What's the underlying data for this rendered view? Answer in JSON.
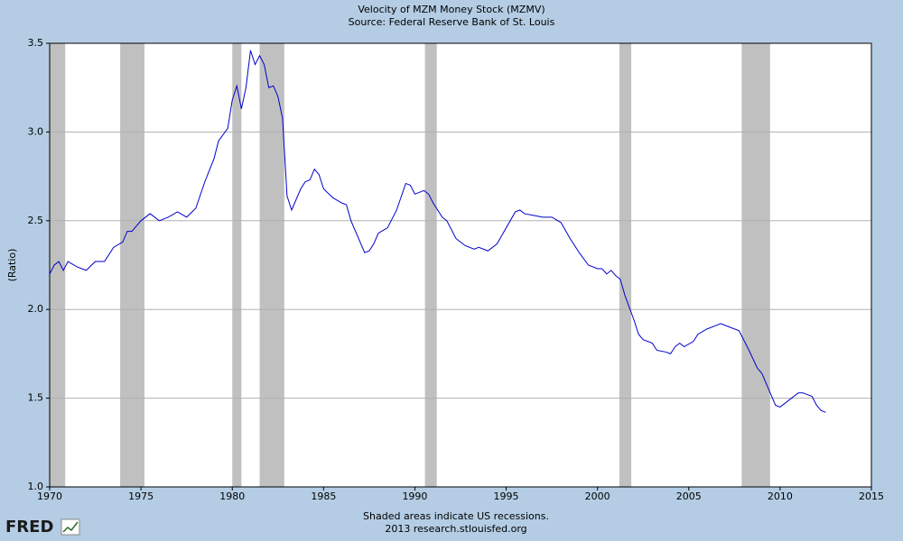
{
  "chart_data": {
    "type": "line",
    "title": "Velocity of MZM Money Stock (MZMV)",
    "subtitle": "Source: Federal Reserve Bank of St. Louis",
    "ylabel": "(Ratio)",
    "notes": [
      "Shaded areas indicate US recessions.",
      "2013 research.stlouisfed.org"
    ],
    "logo": "FRED",
    "x": [
      1970.0,
      1970.25,
      1970.5,
      1970.75,
      1971.0,
      1971.5,
      1972.0,
      1972.5,
      1973.0,
      1973.5,
      1974.0,
      1974.25,
      1974.5,
      1975.0,
      1975.5,
      1976.0,
      1976.5,
      1977.0,
      1977.5,
      1978.0,
      1978.5,
      1979.0,
      1979.25,
      1979.75,
      1980.0,
      1980.25,
      1980.5,
      1980.75,
      1981.0,
      1981.25,
      1981.5,
      1981.75,
      1982.0,
      1982.25,
      1982.5,
      1982.75,
      1983.0,
      1983.25,
      1983.75,
      1984.0,
      1984.25,
      1984.5,
      1984.75,
      1985.0,
      1985.5,
      1986.0,
      1986.25,
      1986.5,
      1987.0,
      1987.25,
      1987.5,
      1987.75,
      1988.0,
      1988.5,
      1989.0,
      1989.5,
      1989.75,
      1990.0,
      1990.5,
      1990.75,
      1991.0,
      1991.5,
      1991.75,
      1992.25,
      1992.75,
      1993.25,
      1993.5,
      1994.0,
      1994.5,
      1995.0,
      1995.5,
      1995.75,
      1996.0,
      1996.5,
      1997.0,
      1997.5,
      1998.0,
      1998.5,
      1999.0,
      1999.5,
      2000.0,
      2000.25,
      2000.5,
      2000.75,
      2001.0,
      2001.25,
      2001.5,
      2002.0,
      2002.25,
      2002.5,
      2003.0,
      2003.25,
      2003.75,
      2004.0,
      2004.25,
      2004.5,
      2004.75,
      2005.25,
      2005.5,
      2006.0,
      2006.5,
      2006.75,
      2007.25,
      2007.75,
      2008.25,
      2008.75,
      2009.0,
      2009.5,
      2009.75,
      2010.0,
      2010.5,
      2011.0,
      2011.25,
      2011.75,
      2012.0,
      2012.25,
      2012.5
    ],
    "series": [
      {
        "name": "MZMV",
        "color": "#0000cc",
        "values": [
          2.2,
          2.25,
          2.27,
          2.22,
          2.27,
          2.24,
          2.22,
          2.27,
          2.27,
          2.35,
          2.38,
          2.44,
          2.44,
          2.5,
          2.54,
          2.5,
          2.52,
          2.55,
          2.52,
          2.57,
          2.72,
          2.85,
          2.95,
          3.02,
          3.18,
          3.26,
          3.13,
          3.25,
          3.46,
          3.38,
          3.43,
          3.38,
          3.25,
          3.26,
          3.2,
          3.08,
          2.64,
          2.56,
          2.68,
          2.72,
          2.73,
          2.79,
          2.76,
          2.68,
          2.63,
          2.6,
          2.59,
          2.5,
          2.38,
          2.32,
          2.33,
          2.37,
          2.43,
          2.46,
          2.56,
          2.71,
          2.7,
          2.65,
          2.67,
          2.65,
          2.6,
          2.52,
          2.5,
          2.4,
          2.36,
          2.34,
          2.35,
          2.33,
          2.37,
          2.46,
          2.55,
          2.56,
          2.54,
          2.53,
          2.52,
          2.52,
          2.49,
          2.4,
          2.32,
          2.25,
          2.23,
          2.23,
          2.2,
          2.22,
          2.19,
          2.17,
          2.08,
          1.94,
          1.86,
          1.83,
          1.81,
          1.77,
          1.76,
          1.75,
          1.79,
          1.81,
          1.79,
          1.82,
          1.86,
          1.89,
          1.91,
          1.92,
          1.9,
          1.88,
          1.78,
          1.67,
          1.64,
          1.52,
          1.46,
          1.45,
          1.49,
          1.53,
          1.53,
          1.51,
          1.46,
          1.43,
          1.42
        ]
      }
    ],
    "shaded": [
      [
        1970.0,
        1970.85
      ],
      [
        1973.86,
        1975.19
      ],
      [
        1980.0,
        1980.5
      ],
      [
        1981.5,
        1982.85
      ],
      [
        1990.55,
        1991.2
      ],
      [
        2001.2,
        2001.85
      ],
      [
        2007.9,
        2009.45
      ]
    ],
    "shade_color": "#c0c0c0",
    "xlim": [
      1970,
      2015
    ],
    "xticks": [
      1970,
      1975,
      1980,
      1985,
      1990,
      1995,
      2000,
      2005,
      2010,
      2015
    ],
    "ylim": [
      1,
      3.5
    ],
    "yticks": [
      {
        "value": 1,
        "label": "1.0"
      },
      1.5,
      {
        "value": 2,
        "label": "2.0"
      },
      2.5,
      {
        "value": 3,
        "label": "3.0"
      },
      3.5
    ],
    "grid": true
  }
}
